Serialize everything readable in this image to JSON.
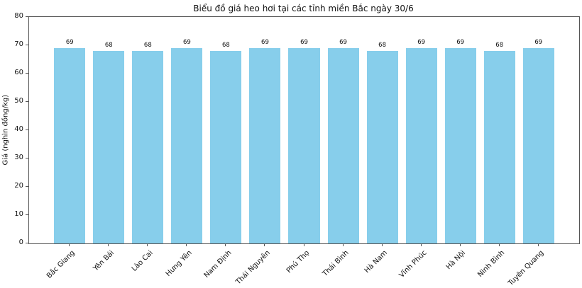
{
  "chart_data": {
    "type": "bar",
    "title": "Biểu đồ giá heo hơi tại các tỉnh miền Bắc ngày 30/6",
    "xlabel": "",
    "ylabel": "Giá (nghìn đồng/kg)",
    "categories": [
      "Bắc Giang",
      "Yên Bái",
      "Lào Cai",
      "Hưng Yên",
      "Nam Định",
      "Thái Nguyên",
      "Phú Thọ",
      "Thái Bình",
      "Hà Nam",
      "Vĩnh Phúc",
      "Hà Nội",
      "Ninh Bình",
      "Tuyên Quang"
    ],
    "values": [
      69,
      68,
      68,
      69,
      68,
      69,
      69,
      69,
      68,
      69,
      69,
      68,
      69
    ],
    "bar_labels": [
      69,
      68,
      68,
      69,
      68,
      69,
      69,
      69,
      68,
      69,
      69,
      68,
      69
    ],
    "ylim": [
      0,
      80
    ],
    "yticks": [
      0,
      10,
      20,
      30,
      40,
      50,
      60,
      70,
      80
    ],
    "bar_color": "#87CEEB",
    "axis_color": "#555555",
    "text_color": "#111111",
    "grid": false,
    "legend": null,
    "bar_width_fraction": 0.8,
    "x_margin_fraction": 0.05
  }
}
